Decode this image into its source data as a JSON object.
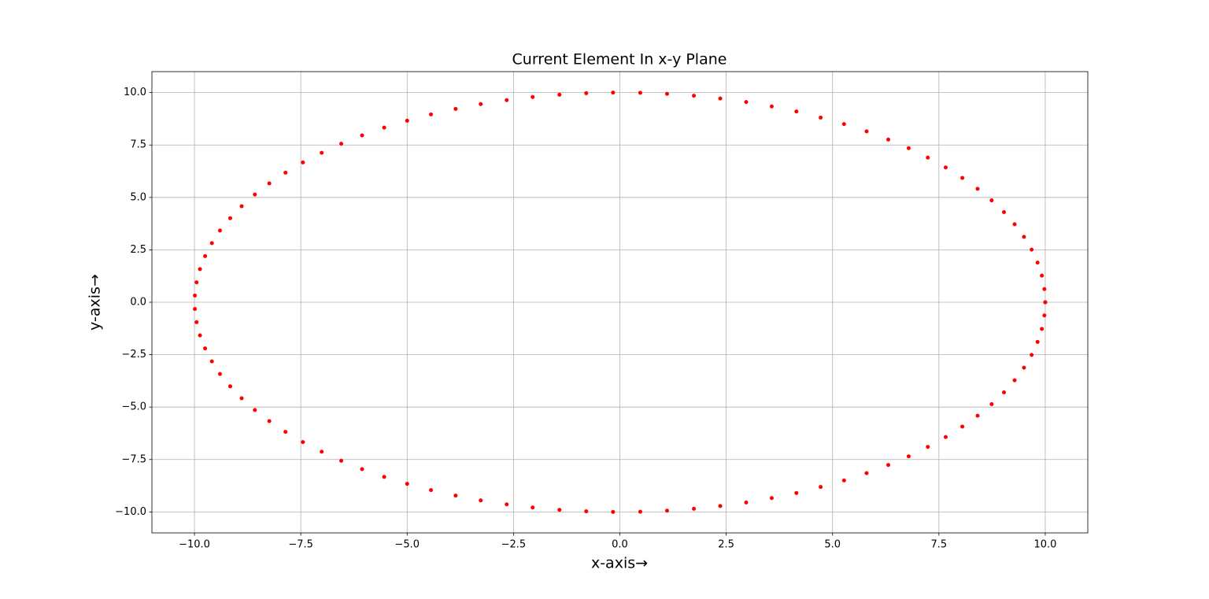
{
  "chart_data": {
    "type": "scatter",
    "title": "Current Element In x-y Plane",
    "xlabel": "x-axis→",
    "ylabel": "y-axis→",
    "color": "#ff0000",
    "grid": true,
    "xlim": [
      -11,
      11
    ],
    "ylim": [
      -11,
      11
    ],
    "xticks": [
      {
        "value": -10,
        "label": "−10.0"
      },
      {
        "value": -7.5,
        "label": "−7.5"
      },
      {
        "value": -5,
        "label": "−5.0"
      },
      {
        "value": -2.5,
        "label": "−2.5"
      },
      {
        "value": 0,
        "label": "0.0"
      },
      {
        "value": 2.5,
        "label": "2.5"
      },
      {
        "value": 5,
        "label": "5.0"
      },
      {
        "value": 7.5,
        "label": "7.5"
      },
      {
        "value": 10,
        "label": "10.0"
      }
    ],
    "yticks": [
      {
        "value": -10,
        "label": "−10.0"
      },
      {
        "value": -7.5,
        "label": "−7.5"
      },
      {
        "value": -5,
        "label": "−5.0"
      },
      {
        "value": -2.5,
        "label": "−2.5"
      },
      {
        "value": 0,
        "label": "0.0"
      },
      {
        "value": 2.5,
        "label": "2.5"
      },
      {
        "value": 5,
        "label": "5.0"
      },
      {
        "value": 7.5,
        "label": "7.5"
      },
      {
        "value": 10,
        "label": "10.0"
      }
    ],
    "x": [
      10,
      9.98,
      9.92,
      9.82,
      9.68,
      9.5,
      9.28,
      9.03,
      8.74,
      8.41,
      8.05,
      7.66,
      7.24,
      6.79,
      6.31,
      5.8,
      5.27,
      4.72,
      4.15,
      3.57,
      2.97,
      2.36,
      1.74,
      1.11,
      0.48,
      -0.16,
      -0.79,
      -1.42,
      -2.05,
      -2.66,
      -3.27,
      -3.86,
      -4.44,
      -5,
      -5.54,
      -6.06,
      -6.55,
      -7.01,
      -7.45,
      -7.86,
      -8.24,
      -8.58,
      -8.89,
      -9.16,
      -9.4,
      -9.59,
      -9.75,
      -9.87,
      -9.95,
      -9.99,
      -9.99,
      -9.95,
      -9.87,
      -9.75,
      -9.59,
      -9.4,
      -9.16,
      -8.89,
      -8.58,
      -8.24,
      -7.86,
      -7.45,
      -7.01,
      -6.55,
      -6.06,
      -5.54,
      -5,
      -4.44,
      -3.86,
      -3.27,
      -2.66,
      -2.05,
      -1.42,
      -0.79,
      -0.16,
      0.48,
      1.11,
      1.74,
      2.36,
      2.97,
      3.57,
      4.15,
      4.72,
      5.27,
      5.8,
      6.31,
      6.79,
      7.24,
      7.66,
      8.05,
      8.41,
      8.74,
      9.03,
      9.28,
      9.5,
      9.68,
      9.82,
      9.92,
      9.98,
      10
    ],
    "values": [
      0,
      0.63,
      1.27,
      1.89,
      2.51,
      3.12,
      3.72,
      4.3,
      4.86,
      5.41,
      5.93,
      6.43,
      6.9,
      7.35,
      7.76,
      8.15,
      8.5,
      8.81,
      9.1,
      9.34,
      9.55,
      9.72,
      9.85,
      9.94,
      9.99,
      10,
      9.97,
      9.9,
      9.79,
      9.64,
      9.45,
      9.22,
      8.96,
      8.66,
      8.33,
      7.96,
      7.56,
      7.13,
      6.67,
      6.18,
      5.67,
      5.14,
      4.58,
      4.01,
      3.42,
      2.82,
      2.2,
      1.58,
      0.95,
      0.32,
      -0.32,
      -0.95,
      -1.58,
      -2.2,
      -2.82,
      -3.42,
      -4.01,
      -4.58,
      -5.14,
      -5.67,
      -6.18,
      -6.67,
      -7.13,
      -7.56,
      -7.96,
      -8.33,
      -8.66,
      -8.96,
      -9.22,
      -9.45,
      -9.64,
      -9.79,
      -9.9,
      -9.97,
      -10,
      -9.99,
      -9.94,
      -9.85,
      -9.72,
      -9.55,
      -9.34,
      -9.1,
      -8.81,
      -8.5,
      -8.15,
      -7.76,
      -7.35,
      -6.9,
      -6.43,
      -5.93,
      -5.41,
      -4.86,
      -4.3,
      -3.72,
      -3.12,
      -2.51,
      -1.89,
      -1.27,
      -0.63,
      0
    ]
  }
}
